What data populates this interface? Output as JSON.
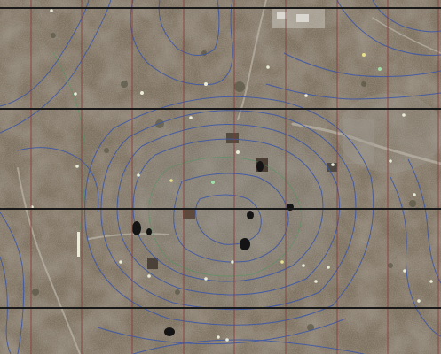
{
  "map": {
    "kind": "aerial-photo-with-contours-and-grid",
    "grid": {
      "major_line_color": "#1a1a1a",
      "minor_line_color": "#8a3a3a"
    },
    "colors": {
      "terrain_base": "#7d7160",
      "terrain_light": "#9a8e7c",
      "terrain_dark": "#5a5246",
      "disturbed_ground": "#8a8a86",
      "contour": "#3e58a6",
      "road": "#b8b2a6",
      "vegetation": "#4a4a3a",
      "pit": "#141414",
      "marker_white": "#e8ecd8",
      "marker_green": "#9fe0a8",
      "marker_yellow": "#e8e08a"
    },
    "features": {
      "contour_lines": "elevation-contours",
      "excavation_pits": "dark-pits",
      "survey_markers": "survey-point-markers",
      "structures": "ground-structures",
      "access_roads": "dirt-roads"
    }
  }
}
